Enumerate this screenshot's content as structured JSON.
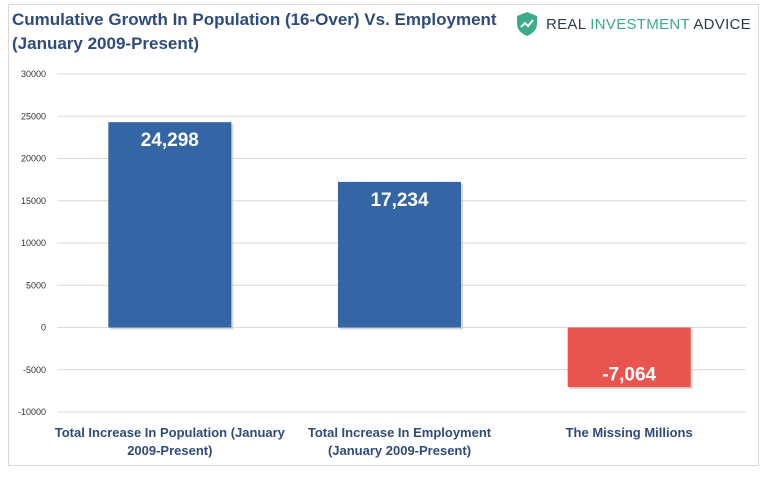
{
  "title_line1": "Cumulative Growth In Population (16-Over) Vs. Employment",
  "title_line2": "(January 2009-Present)",
  "logo": {
    "word1": "REAL",
    "word2": "INVESTMENT",
    "word3": "ADVICE",
    "icon": "shield-icon",
    "icon_color": "#3daa8a"
  },
  "chart_data": {
    "type": "bar",
    "title": "Cumulative Growth In Population (16-Over) Vs. Employment (January 2009-Present)",
    "categories": [
      "Total Increase In Population (January 2009-Present)",
      "Total Increase In Employment (January 2009-Present)",
      "The Missing Millions"
    ],
    "category_lines": [
      [
        "Total Increase In Population (January",
        "2009-Present)"
      ],
      [
        "Total Increase In Employment",
        "(January 2009-Present)"
      ],
      [
        "The Missing Millions"
      ]
    ],
    "values": [
      24298,
      17234,
      -7064
    ],
    "value_labels": [
      "24,298",
      "17,234",
      "-7,064"
    ],
    "colors": [
      "#3465a4",
      "#3465a4",
      "#e8554e"
    ],
    "ylim": [
      -10000,
      30000
    ],
    "yticks": [
      30000,
      25000,
      20000,
      15000,
      10000,
      5000,
      0,
      -5000,
      -10000
    ],
    "ytick_labels": [
      "30000",
      "25000",
      "20000",
      "15000",
      "10000",
      "5000",
      "0",
      "-5000",
      "-10000"
    ],
    "gridlines": true,
    "xlabel": "",
    "ylabel": ""
  }
}
